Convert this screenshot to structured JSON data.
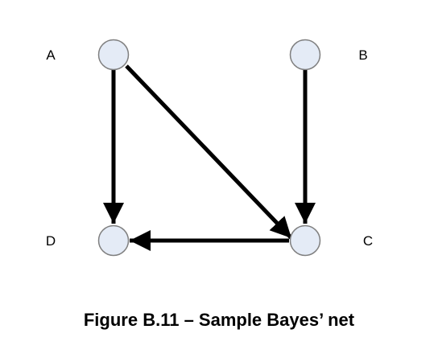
{
  "diagram": {
    "nodes": [
      {
        "id": "A",
        "label": "A"
      },
      {
        "id": "B",
        "label": "B"
      },
      {
        "id": "C",
        "label": "C"
      },
      {
        "id": "D",
        "label": "D"
      }
    ],
    "edges": [
      {
        "from": "A",
        "to": "D"
      },
      {
        "from": "A",
        "to": "C"
      },
      {
        "from": "B",
        "to": "C"
      },
      {
        "from": "C",
        "to": "D"
      }
    ],
    "colors": {
      "node_fill": "#e4ebf6",
      "node_stroke": "#7f7f7f",
      "edge": "#000000"
    }
  },
  "caption": "Figure B.11 – Sample Bayes’ net"
}
